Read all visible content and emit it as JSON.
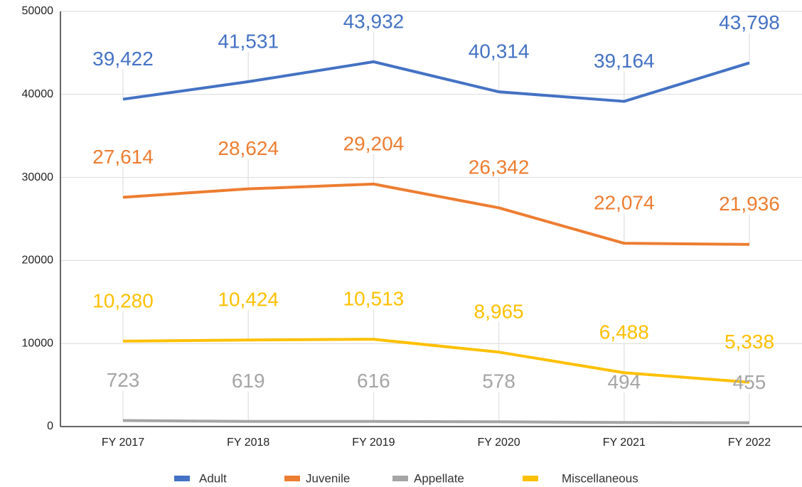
{
  "chart_data": {
    "type": "line",
    "categories": [
      "FY 2017",
      "FY 2018",
      "FY 2019",
      "FY 2020",
      "FY 2021",
      "FY 2022"
    ],
    "series": [
      {
        "name": "Adult",
        "color": "#4472c4",
        "values": [
          39422,
          41531,
          43932,
          40314,
          39164,
          43798
        ],
        "value_labels": [
          "39,422",
          "41,531",
          "43,932",
          "40,314",
          "39,164",
          "43,798"
        ]
      },
      {
        "name": "Juvenile",
        "color": "#ed7d31",
        "values": [
          27614,
          28624,
          29204,
          26342,
          22074,
          21936
        ],
        "value_labels": [
          "27,614",
          "28,624",
          "29,204",
          "26,342",
          "22,074",
          "21,936"
        ]
      },
      {
        "name": "Appellate",
        "color": "#a5a5a5",
        "values": [
          723,
          619,
          616,
          578,
          494,
          455
        ]
      },
      {
        "name": "Miscellaneous",
        "color": "#ffc000",
        "values": [
          10280,
          10424,
          10513,
          8965,
          6488,
          5338
        ],
        "value_labels": [
          "10,280",
          "10,424",
          "10,513",
          "8,965",
          "6,488",
          "5,338"
        ]
      }
    ],
    "ylim": [
      0,
      50000
    ],
    "yticks": [
      0,
      10000,
      20000,
      30000,
      40000,
      50000
    ],
    "grid": true,
    "legend": "bottom"
  }
}
